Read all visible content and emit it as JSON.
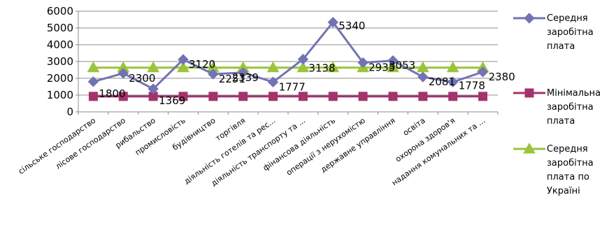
{
  "chart_data": {
    "type": "line",
    "categories": [
      "сільське господарство",
      "лісове господарство",
      "рибальство",
      "промисловість",
      "будівництво",
      "торгівля",
      "діяльність готелів та рес...",
      "діяльність транспорту та ...",
      "фінансова діяльність",
      "операції з нерухомістю",
      "державне управління",
      "освіта",
      "охорона здоров'я",
      "надання комунальних та ..."
    ],
    "series": [
      {
        "name": "Середня заробітна плата",
        "values": [
          1800,
          2300,
          1369,
          3120,
          2251,
          2339,
          1777,
          3138,
          5340,
          2935,
          3053,
          2081,
          1778,
          2380
        ],
        "labels": [
          "1800",
          "2300",
          "1369",
          "3120",
          "2251",
          "2339",
          "1777",
          "3138",
          "5340",
          "2935",
          "3053",
          "2081",
          "1778",
          "2380"
        ],
        "color": "#7373b4",
        "marker": "diamond"
      },
      {
        "name": "Мінімальна заробітна плата",
        "values": [
          922,
          922,
          922,
          922,
          922,
          922,
          922,
          922,
          922,
          922,
          922,
          922,
          922,
          922
        ],
        "color": "#a3336b",
        "marker": "square"
      },
      {
        "name": "Середня заробітна плата по Україні",
        "values": [
          2633,
          2633,
          2633,
          2633,
          2633,
          2633,
          2633,
          2633,
          2633,
          2633,
          2633,
          2633,
          2633,
          2633
        ],
        "color": "#9ac43b",
        "marker": "triangle"
      }
    ],
    "y_ticks": [
      "0",
      "1000",
      "2000",
      "3000",
      "4000",
      "5000",
      "6000"
    ],
    "ylim": [
      0,
      6000
    ],
    "grid": true,
    "legend": "right",
    "legend_lines": [
      [
        "Середня",
        "заробітна",
        "плата"
      ],
      [
        "Мінімальна",
        "заробітна",
        "плата"
      ],
      [
        "Середня",
        "заробітна",
        "плата по",
        "Україні"
      ]
    ]
  }
}
